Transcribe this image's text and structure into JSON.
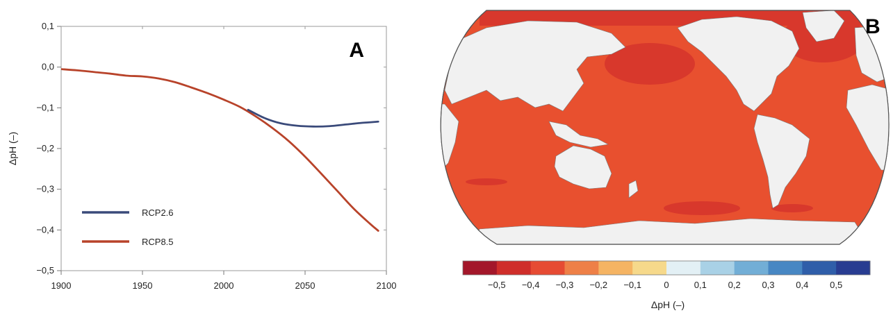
{
  "chart_data": [
    {
      "type": "line",
      "panel_label": "A",
      "ylabel": "ΔpH (–)",
      "xlabel": "",
      "xlim": [
        1900,
        2100
      ],
      "ylim": [
        -0.5,
        0.1
      ],
      "x_ticks": [
        1900,
        1950,
        2000,
        2050,
        2100
      ],
      "x_tick_labels": [
        "1900",
        "1950",
        "2000",
        "2050",
        "2100"
      ],
      "y_ticks": [
        0.1,
        0.0,
        -0.1,
        -0.2,
        -0.3,
        -0.4,
        -0.5
      ],
      "y_tick_labels": [
        "0,1",
        "0,0",
        "−0,1",
        "−0,2",
        "−0,3",
        "−0,4",
        "−0,5"
      ],
      "grid": false,
      "legend": "bottom-left",
      "series": [
        {
          "name": "RCP2.6",
          "color": "#3a4a7a",
          "x": [
            2015,
            2025,
            2035,
            2045,
            2055,
            2065,
            2075,
            2085,
            2095
          ],
          "y": [
            -0.105,
            -0.125,
            -0.138,
            -0.144,
            -0.146,
            -0.145,
            -0.141,
            -0.137,
            -0.134
          ]
        },
        {
          "name": "RCP8.5",
          "color": "#b8432a",
          "x": [
            1900,
            1910,
            1920,
            1930,
            1940,
            1950,
            1960,
            1970,
            1980,
            1990,
            2000,
            2010,
            2020,
            2030,
            2040,
            2050,
            2060,
            2070,
            2080,
            2090,
            2095
          ],
          "y": [
            -0.005,
            -0.008,
            -0.012,
            -0.016,
            -0.021,
            -0.023,
            -0.028,
            -0.037,
            -0.05,
            -0.064,
            -0.08,
            -0.098,
            -0.122,
            -0.15,
            -0.182,
            -0.22,
            -0.262,
            -0.305,
            -0.348,
            -0.385,
            -0.402
          ]
        }
      ]
    },
    {
      "type": "heatmap",
      "panel_label": "B",
      "colorbar_label": "ΔpH (–)",
      "colorbar_tick_labels": [
        "−0,5",
        "−0,4",
        "−0,3",
        "−0,2",
        "−0,1",
        "0",
        "0,1",
        "0,2",
        "0,3",
        "0,4",
        "0,5"
      ],
      "colorbar_colors": [
        "#a3172a",
        "#cf2e2a",
        "#e64b33",
        "#ee8047",
        "#f5b463",
        "#f6d98b",
        "#e3f0f5",
        "#a9d1e6",
        "#72aed6",
        "#4787c3",
        "#2f5ea9",
        "#283c91"
      ],
      "ocean_color": "#e8502f",
      "land_color": "#f1f1f1"
    }
  ]
}
